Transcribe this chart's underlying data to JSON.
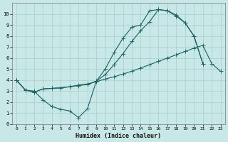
{
  "xlabel": "Humidex (Indice chaleur)",
  "bg_color": "#c8e8e8",
  "grid_color": "#aacccc",
  "line_color": "#1a6060",
  "xlim": [
    -0.5,
    23.5
  ],
  "ylim": [
    0,
    11
  ],
  "xticks": [
    0,
    1,
    2,
    3,
    4,
    5,
    6,
    7,
    8,
    9,
    10,
    11,
    12,
    13,
    14,
    15,
    16,
    17,
    18,
    19,
    20,
    21,
    22,
    23
  ],
  "yticks": [
    0,
    1,
    2,
    3,
    4,
    5,
    6,
    7,
    8,
    9,
    10
  ],
  "line1_x": [
    0,
    1,
    2,
    3,
    4,
    5,
    6,
    7,
    8,
    9,
    10,
    11,
    12,
    13,
    14,
    15,
    16,
    17,
    18,
    19,
    20,
    21
  ],
  "line1_y": [
    4.0,
    3.1,
    3.0,
    2.2,
    1.6,
    1.35,
    1.2,
    0.6,
    1.4,
    3.9,
    5.0,
    6.5,
    7.8,
    8.8,
    9.0,
    10.3,
    10.4,
    10.3,
    9.8,
    9.2,
    8.0,
    5.5
  ],
  "line2_x": [
    0,
    1,
    2,
    3,
    4,
    5,
    6,
    7,
    8,
    9,
    10,
    11,
    12,
    13,
    14,
    15,
    16,
    17,
    18,
    19,
    20,
    21
  ],
  "line2_y": [
    4.0,
    3.1,
    2.9,
    3.2,
    3.25,
    3.3,
    3.4,
    3.5,
    3.6,
    3.9,
    4.5,
    5.4,
    6.4,
    7.5,
    8.5,
    9.3,
    10.4,
    10.3,
    9.9,
    9.2,
    8.0,
    5.5
  ],
  "line3_x": [
    0,
    1,
    2,
    3,
    4,
    5,
    6,
    7,
    8,
    9,
    10,
    11,
    12,
    13,
    14,
    15,
    16,
    17,
    18,
    19,
    20,
    21,
    22,
    23
  ],
  "line3_y": [
    4.0,
    3.1,
    2.9,
    3.2,
    3.25,
    3.3,
    3.4,
    3.55,
    3.65,
    3.85,
    4.1,
    4.3,
    4.55,
    4.8,
    5.1,
    5.4,
    5.7,
    6.0,
    6.3,
    6.6,
    6.9,
    7.15,
    5.5,
    4.8
  ]
}
